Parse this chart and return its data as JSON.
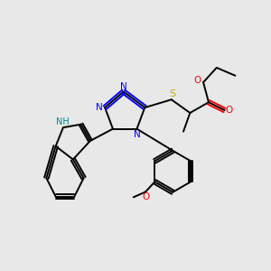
{
  "bg_color": "#e8e8e8",
  "bond_color": "#000000",
  "n_color": "#0000ff",
  "o_color": "#ff0000",
  "s_color": "#ccaa00",
  "nh_color": "#008888",
  "line_width": 1.4,
  "figsize": [
    3.0,
    3.0
  ],
  "dpi": 100,
  "xlim": [
    0,
    10
  ],
  "ylim": [
    0,
    10
  ]
}
